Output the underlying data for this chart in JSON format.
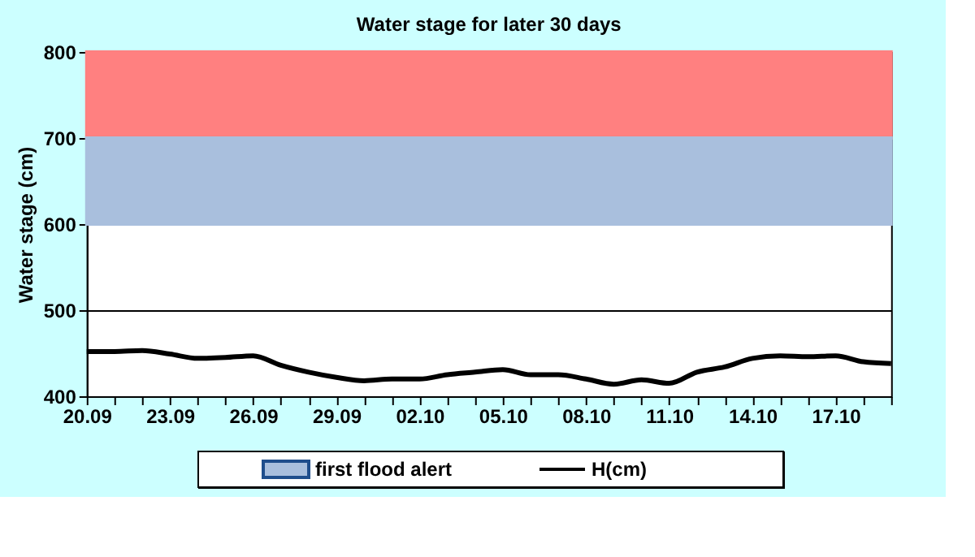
{
  "chart_data": {
    "type": "line",
    "title": "Water stage for later 30 days",
    "ylabel": "Water stage (cm)",
    "categories": [
      "20.09",
      null,
      null,
      "23.09",
      null,
      null,
      "26.09",
      null,
      null,
      "29.09",
      null,
      null,
      "02.10",
      null,
      null,
      "05.10",
      null,
      null,
      "08.10",
      null,
      null,
      "11.10",
      null,
      null,
      "14.10",
      null,
      null,
      "17.10",
      null,
      null
    ],
    "series": [
      {
        "name": "H(cm)",
        "color": "#000000",
        "values": [
          452,
          452,
          453,
          449,
          444,
          445,
          447,
          436,
          428,
          422,
          418,
          420,
          420,
          425,
          428,
          431,
          425,
          425,
          420,
          414,
          419,
          415,
          428,
          434,
          444,
          447,
          446,
          447,
          440,
          438
        ]
      }
    ],
    "bands": [
      {
        "axis": "y",
        "from": 700,
        "to": 800,
        "color": "#ff8080"
      },
      {
        "axis": "y",
        "from": 600,
        "to": 700,
        "color": "#a9bfdd",
        "label": "first flood alert"
      }
    ],
    "ylim": [
      400,
      800
    ],
    "yticks": [
      400,
      500,
      600,
      700,
      800
    ],
    "grid": "y",
    "legend": "bottom",
    "marker": "none",
    "line_style": "solid"
  }
}
